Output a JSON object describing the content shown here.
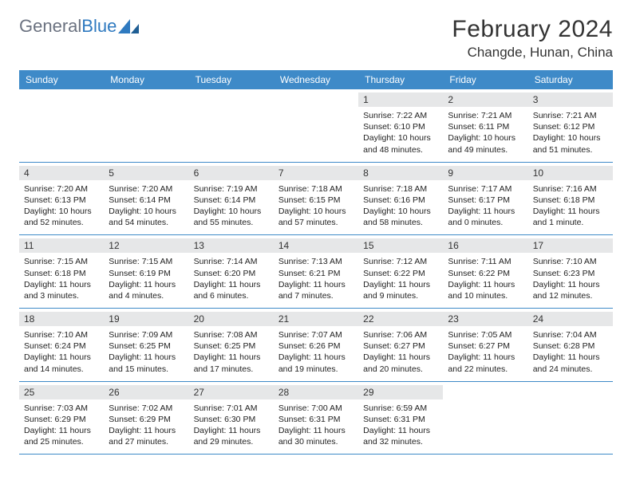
{
  "brand": {
    "name1": "General",
    "name2": "Blue"
  },
  "title": "February 2024",
  "location": "Changde, Hunan, China",
  "colors": {
    "header_bg": "#3e8ac8",
    "header_text": "#ffffff",
    "date_band_bg": "#e6e7e8",
    "border": "#3e8ac8",
    "logo_gray": "#6b7280",
    "logo_blue": "#2f7ac0",
    "text": "#222222",
    "background": "#ffffff"
  },
  "typography": {
    "title_fontsize": 30,
    "location_fontsize": 17,
    "day_header_fontsize": 12,
    "date_fontsize": 12,
    "cell_fontsize": 10.5,
    "logo_fontsize": 22
  },
  "layout": {
    "columns": 7,
    "rows": 5,
    "cell_min_height": 78
  },
  "day_names": [
    "Sunday",
    "Monday",
    "Tuesday",
    "Wednesday",
    "Thursday",
    "Friday",
    "Saturday"
  ],
  "weeks": [
    [
      null,
      null,
      null,
      null,
      {
        "d": "1",
        "sr": "7:22 AM",
        "ss": "6:10 PM",
        "dl": "10 hours and 48 minutes."
      },
      {
        "d": "2",
        "sr": "7:21 AM",
        "ss": "6:11 PM",
        "dl": "10 hours and 49 minutes."
      },
      {
        "d": "3",
        "sr": "7:21 AM",
        "ss": "6:12 PM",
        "dl": "10 hours and 51 minutes."
      }
    ],
    [
      {
        "d": "4",
        "sr": "7:20 AM",
        "ss": "6:13 PM",
        "dl": "10 hours and 52 minutes."
      },
      {
        "d": "5",
        "sr": "7:20 AM",
        "ss": "6:14 PM",
        "dl": "10 hours and 54 minutes."
      },
      {
        "d": "6",
        "sr": "7:19 AM",
        "ss": "6:14 PM",
        "dl": "10 hours and 55 minutes."
      },
      {
        "d": "7",
        "sr": "7:18 AM",
        "ss": "6:15 PM",
        "dl": "10 hours and 57 minutes."
      },
      {
        "d": "8",
        "sr": "7:18 AM",
        "ss": "6:16 PM",
        "dl": "10 hours and 58 minutes."
      },
      {
        "d": "9",
        "sr": "7:17 AM",
        "ss": "6:17 PM",
        "dl": "11 hours and 0 minutes."
      },
      {
        "d": "10",
        "sr": "7:16 AM",
        "ss": "6:18 PM",
        "dl": "11 hours and 1 minute."
      }
    ],
    [
      {
        "d": "11",
        "sr": "7:15 AM",
        "ss": "6:18 PM",
        "dl": "11 hours and 3 minutes."
      },
      {
        "d": "12",
        "sr": "7:15 AM",
        "ss": "6:19 PM",
        "dl": "11 hours and 4 minutes."
      },
      {
        "d": "13",
        "sr": "7:14 AM",
        "ss": "6:20 PM",
        "dl": "11 hours and 6 minutes."
      },
      {
        "d": "14",
        "sr": "7:13 AM",
        "ss": "6:21 PM",
        "dl": "11 hours and 7 minutes."
      },
      {
        "d": "15",
        "sr": "7:12 AM",
        "ss": "6:22 PM",
        "dl": "11 hours and 9 minutes."
      },
      {
        "d": "16",
        "sr": "7:11 AM",
        "ss": "6:22 PM",
        "dl": "11 hours and 10 minutes."
      },
      {
        "d": "17",
        "sr": "7:10 AM",
        "ss": "6:23 PM",
        "dl": "11 hours and 12 minutes."
      }
    ],
    [
      {
        "d": "18",
        "sr": "7:10 AM",
        "ss": "6:24 PM",
        "dl": "11 hours and 14 minutes."
      },
      {
        "d": "19",
        "sr": "7:09 AM",
        "ss": "6:25 PM",
        "dl": "11 hours and 15 minutes."
      },
      {
        "d": "20",
        "sr": "7:08 AM",
        "ss": "6:25 PM",
        "dl": "11 hours and 17 minutes."
      },
      {
        "d": "21",
        "sr": "7:07 AM",
        "ss": "6:26 PM",
        "dl": "11 hours and 19 minutes."
      },
      {
        "d": "22",
        "sr": "7:06 AM",
        "ss": "6:27 PM",
        "dl": "11 hours and 20 minutes."
      },
      {
        "d": "23",
        "sr": "7:05 AM",
        "ss": "6:27 PM",
        "dl": "11 hours and 22 minutes."
      },
      {
        "d": "24",
        "sr": "7:04 AM",
        "ss": "6:28 PM",
        "dl": "11 hours and 24 minutes."
      }
    ],
    [
      {
        "d": "25",
        "sr": "7:03 AM",
        "ss": "6:29 PM",
        "dl": "11 hours and 25 minutes."
      },
      {
        "d": "26",
        "sr": "7:02 AM",
        "ss": "6:29 PM",
        "dl": "11 hours and 27 minutes."
      },
      {
        "d": "27",
        "sr": "7:01 AM",
        "ss": "6:30 PM",
        "dl": "11 hours and 29 minutes."
      },
      {
        "d": "28",
        "sr": "7:00 AM",
        "ss": "6:31 PM",
        "dl": "11 hours and 30 minutes."
      },
      {
        "d": "29",
        "sr": "6:59 AM",
        "ss": "6:31 PM",
        "dl": "11 hours and 32 minutes."
      },
      null,
      null
    ]
  ],
  "labels": {
    "sunrise": "Sunrise:",
    "sunset": "Sunset:",
    "daylight": "Daylight:"
  }
}
